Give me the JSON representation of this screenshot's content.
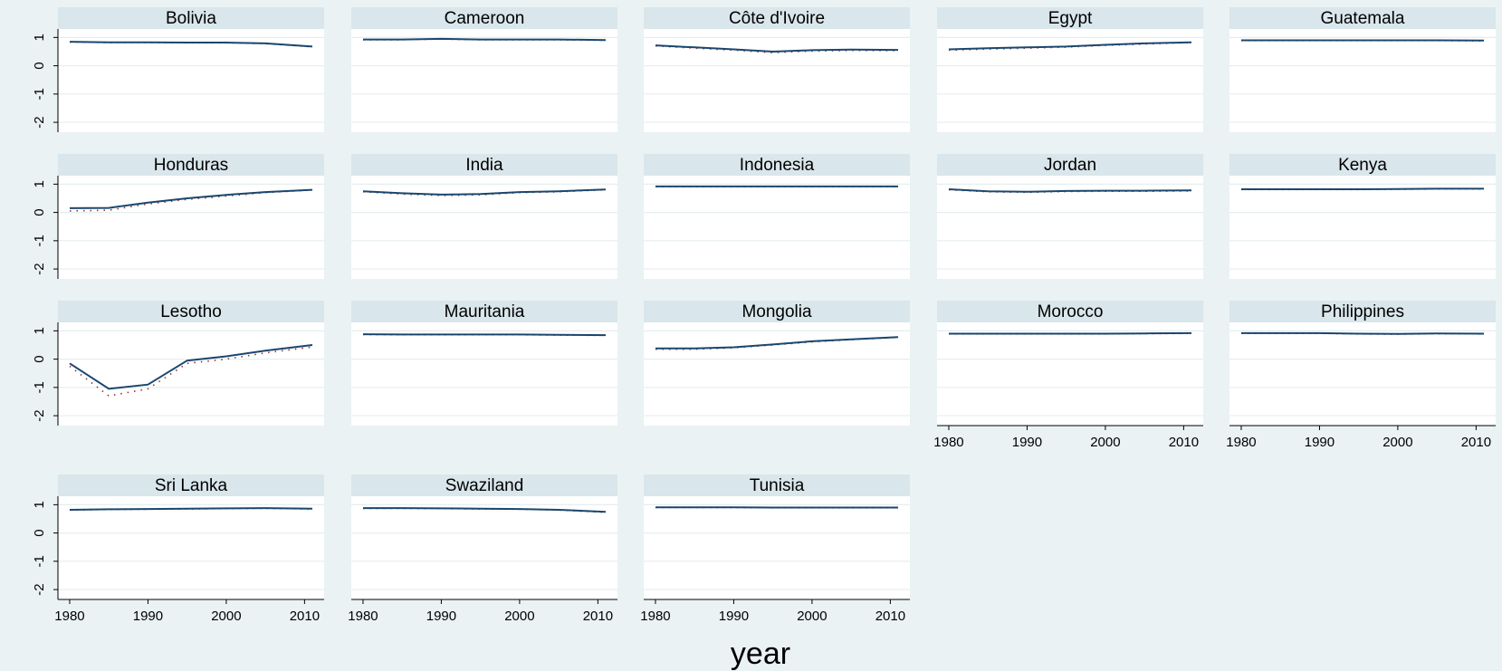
{
  "chart_data": {
    "type": "line",
    "layout": "small-multiples",
    "xlabel": "year",
    "ylabel": "",
    "xlim": [
      1978.5,
      2012.5
    ],
    "ylim": [
      -2.35,
      1.3
    ],
    "xticks": [
      1980,
      1990,
      2000,
      2010
    ],
    "yticks": [
      1,
      0,
      -1,
      -2
    ],
    "grid": true,
    "legend": "none",
    "colors": {
      "solid": "#1a476f",
      "dotted": "#90353b",
      "strip": "#d9e6eb",
      "background": "#eaf2f3"
    },
    "years": [
      1980,
      1985,
      1990,
      1995,
      2000,
      2005,
      2011
    ],
    "panels": [
      {
        "title": "Bolivia",
        "solid": [
          0.85,
          0.83,
          0.83,
          0.82,
          0.82,
          0.79,
          0.68
        ],
        "dotted": [
          0.84,
          0.82,
          0.82,
          0.81,
          0.81,
          0.78,
          0.67
        ]
      },
      {
        "title": "Cameroon",
        "solid": [
          0.93,
          0.93,
          0.95,
          0.93,
          0.93,
          0.93,
          0.91
        ],
        "dotted": [
          0.92,
          0.92,
          0.94,
          0.92,
          0.92,
          0.92,
          0.9
        ]
      },
      {
        "title": "Côte d'Ivoire",
        "solid": [
          0.72,
          0.65,
          0.58,
          0.5,
          0.55,
          0.57,
          0.56
        ],
        "dotted": [
          0.7,
          0.62,
          0.55,
          0.46,
          0.52,
          0.54,
          0.53
        ]
      },
      {
        "title": "Egypt",
        "solid": [
          0.58,
          0.62,
          0.65,
          0.68,
          0.74,
          0.79,
          0.83
        ],
        "dotted": [
          0.55,
          0.59,
          0.62,
          0.66,
          0.72,
          0.77,
          0.82
        ]
      },
      {
        "title": "Guatemala",
        "solid": [
          0.9,
          0.9,
          0.9,
          0.9,
          0.9,
          0.9,
          0.89
        ],
        "dotted": [
          0.89,
          0.89,
          0.89,
          0.89,
          0.89,
          0.89,
          0.88
        ]
      },
      {
        "title": "Honduras",
        "solid": [
          0.15,
          0.16,
          0.35,
          0.5,
          0.62,
          0.72,
          0.8
        ],
        "dotted": [
          0.05,
          0.08,
          0.3,
          0.46,
          0.58,
          0.7,
          0.79
        ]
      },
      {
        "title": "India",
        "solid": [
          0.75,
          0.68,
          0.63,
          0.65,
          0.72,
          0.75,
          0.81
        ],
        "dotted": [
          0.73,
          0.65,
          0.6,
          0.62,
          0.7,
          0.73,
          0.8
        ]
      },
      {
        "title": "Indonesia",
        "solid": [
          0.92,
          0.92,
          0.92,
          0.92,
          0.92,
          0.92,
          0.92
        ],
        "dotted": [
          0.91,
          0.91,
          0.91,
          0.91,
          0.91,
          0.91,
          0.91
        ]
      },
      {
        "title": "Jordan",
        "solid": [
          0.82,
          0.75,
          0.73,
          0.76,
          0.77,
          0.77,
          0.78
        ],
        "dotted": [
          0.8,
          0.73,
          0.71,
          0.74,
          0.75,
          0.75,
          0.76
        ]
      },
      {
        "title": "Kenya",
        "solid": [
          0.82,
          0.82,
          0.82,
          0.82,
          0.83,
          0.84,
          0.84
        ],
        "dotted": [
          0.81,
          0.81,
          0.81,
          0.81,
          0.82,
          0.83,
          0.83
        ]
      },
      {
        "title": "Lesotho",
        "solid": [
          -0.15,
          -1.05,
          -0.9,
          -0.05,
          0.1,
          0.3,
          0.5
        ],
        "dotted": [
          -0.25,
          -1.3,
          -1.05,
          -0.15,
          0.0,
          0.22,
          0.43
        ]
      },
      {
        "title": "Mauritania",
        "solid": [
          0.88,
          0.87,
          0.87,
          0.87,
          0.87,
          0.86,
          0.85
        ],
        "dotted": [
          0.87,
          0.86,
          0.86,
          0.86,
          0.86,
          0.85,
          0.84
        ]
      },
      {
        "title": "Mongolia",
        "solid": [
          0.38,
          0.38,
          0.42,
          0.52,
          0.63,
          0.7,
          0.78
        ],
        "dotted": [
          0.35,
          0.35,
          0.4,
          0.5,
          0.61,
          0.69,
          0.77
        ]
      },
      {
        "title": "Morocco",
        "solid": [
          0.9,
          0.9,
          0.9,
          0.9,
          0.9,
          0.91,
          0.92
        ],
        "dotted": [
          0.89,
          0.89,
          0.89,
          0.89,
          0.89,
          0.9,
          0.91
        ]
      },
      {
        "title": "Philippines",
        "solid": [
          0.92,
          0.92,
          0.92,
          0.9,
          0.89,
          0.91,
          0.9
        ],
        "dotted": [
          0.91,
          0.91,
          0.91,
          0.89,
          0.88,
          0.9,
          0.89
        ]
      },
      {
        "title": "Sri Lanka",
        "solid": [
          0.82,
          0.84,
          0.85,
          0.86,
          0.87,
          0.88,
          0.86
        ],
        "dotted": [
          0.81,
          0.83,
          0.84,
          0.85,
          0.86,
          0.87,
          0.85
        ]
      },
      {
        "title": "Swaziland",
        "solid": [
          0.88,
          0.88,
          0.87,
          0.86,
          0.85,
          0.82,
          0.75
        ],
        "dotted": [
          0.87,
          0.87,
          0.86,
          0.85,
          0.84,
          0.81,
          0.73
        ]
      },
      {
        "title": "Tunisia",
        "solid": [
          0.91,
          0.91,
          0.91,
          0.9,
          0.9,
          0.9,
          0.9
        ],
        "dotted": [
          0.9,
          0.9,
          0.9,
          0.89,
          0.89,
          0.89,
          0.89
        ]
      }
    ]
  }
}
